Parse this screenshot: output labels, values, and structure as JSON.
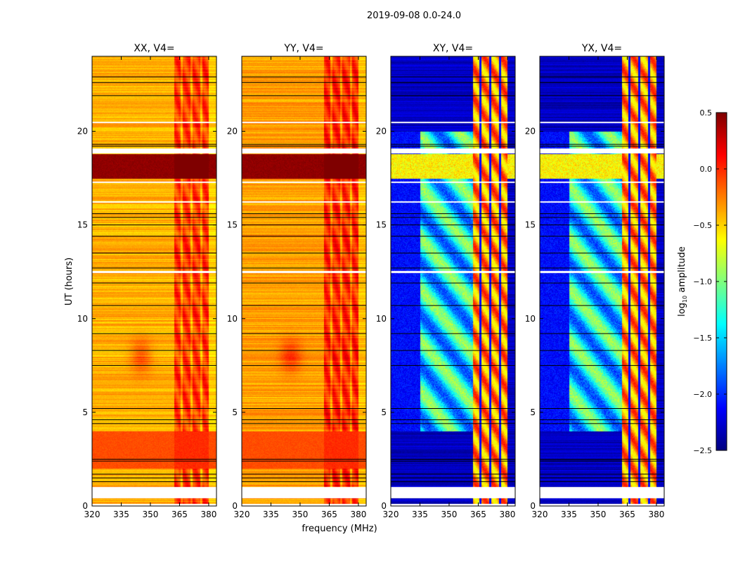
{
  "chart_data": {
    "type": "heatmap",
    "title": "2019-09-08 0.0-24.0",
    "xlabel": "frequency (MHz)",
    "ylabel": "UT (hours)",
    "xlim": [
      320,
      384
    ],
    "ylim": [
      0,
      24
    ],
    "xticks": [
      320,
      335,
      350,
      365,
      380
    ],
    "yticks": [
      0,
      5,
      10,
      15,
      20
    ],
    "panels": [
      {
        "title": "XX, V4=",
        "kind": "auto",
        "base": -0.4
      },
      {
        "title": "YY, V4=",
        "kind": "auto",
        "base": -0.35
      },
      {
        "title": "XY, V4=",
        "kind": "cross",
        "base": -2.3
      },
      {
        "title": "YX, V4=",
        "kind": "cross",
        "base": -2.3
      }
    ],
    "rfi_band_mhz": [
      362,
      380
    ],
    "rfi_band_stripes_mhz": [
      366,
      371,
      376
    ],
    "blank_hours": [
      [
        0,
        0.12
      ],
      [
        0.45,
        1.02
      ],
      [
        16.2,
        16.3
      ],
      [
        17.25,
        17.35
      ],
      [
        18.85,
        19.1
      ],
      [
        20.45,
        20.52
      ],
      [
        12.45,
        12.55
      ]
    ],
    "flag_line_hours": [
      1.3,
      1.5,
      1.7,
      2.4,
      2.5,
      4.4,
      4.6,
      5.2,
      7.5,
      8.3,
      9.2,
      10.7,
      11.9,
      12.7,
      13.5,
      14.4,
      15.0,
      15.4,
      15.6,
      19.2,
      19.3,
      21.9,
      22.6,
      22.9
    ],
    "strong_hours": [
      [
        17.5,
        18.8,
        0.45
      ],
      [
        2.0,
        4.0,
        -0.1
      ]
    ],
    "colorbar": {
      "label": "log10 amplitude",
      "range": [
        -2.5,
        0.5
      ],
      "ticks": [
        "0.5",
        "0.0",
        "−0.5",
        "−1.0",
        "−1.5",
        "−2.0",
        "−2.5"
      ],
      "tick_values": [
        0.5,
        0.0,
        -0.5,
        -1.0,
        -1.5,
        -2.0,
        -2.5
      ],
      "colormap": "jet"
    }
  }
}
